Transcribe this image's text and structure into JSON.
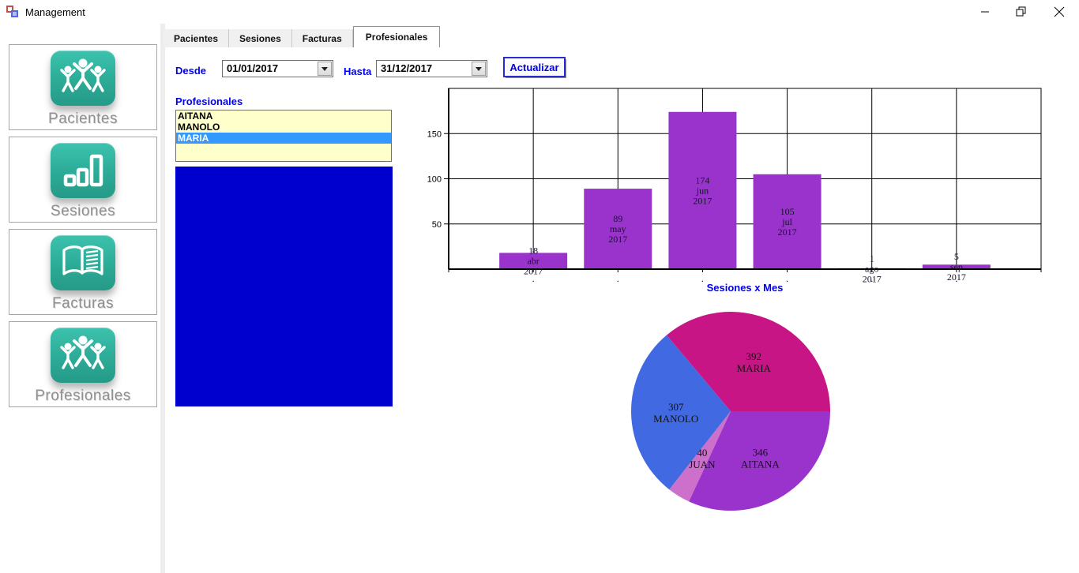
{
  "window": {
    "title": "Management"
  },
  "icons": {
    "app": "windows-form-icon",
    "minimize": "minimize-icon",
    "restore": "restore-icon",
    "close": "close-icon",
    "dropdown": "chevron-down-icon"
  },
  "sidebar": {
    "items": [
      {
        "label": "Pacientes",
        "icon": "people-icon"
      },
      {
        "label": "Sesiones",
        "icon": "bar-chart-icon"
      },
      {
        "label": "Facturas",
        "icon": "invoice-book-icon"
      },
      {
        "label": "Profesionales",
        "icon": "people-icon"
      }
    ]
  },
  "tabs": [
    {
      "label": "Pacientes",
      "selected": false
    },
    {
      "label": "Sesiones",
      "selected": false
    },
    {
      "label": "Facturas",
      "selected": false
    },
    {
      "label": "Profesionales",
      "selected": true
    }
  ],
  "filters": {
    "desde_label": "Desde",
    "desde_value": "01/01/2017",
    "hasta_label": "Hasta",
    "hasta_value": "31/12/2017",
    "actualizar_label": "Actualizar"
  },
  "professionals": {
    "label": "Profesionales",
    "items": [
      "AITANA",
      "MANOLO",
      "MARIA"
    ],
    "selected_index": 2
  },
  "colors": {
    "accent_blue": "#0000f0",
    "empty_chart_panel": "#0000ce",
    "list_background": "#ffffcc",
    "list_selection": "#3399ff",
    "nav_icon_teal": "#2cab97",
    "bar_purple": "#9933cc"
  },
  "chart_data": [
    {
      "type": "bar",
      "title": "Sesiones x Mes",
      "categories": [
        "abr",
        "may",
        "jun",
        "jul",
        "ago",
        "sep"
      ],
      "year": "2017",
      "values": [
        18,
        89,
        174,
        105,
        1,
        5
      ],
      "xlabel": "",
      "ylabel": "",
      "ylim": [
        0,
        200
      ],
      "yticks": [
        50,
        100,
        150
      ],
      "grid": true,
      "bar_color": "#9933cc",
      "legend": "none"
    },
    {
      "type": "pie",
      "title": "",
      "start_angle_deg": 0,
      "direction": "clockwise",
      "series": [
        {
          "name": "AITANA",
          "value": 346,
          "color": "#9933cc"
        },
        {
          "name": "JUAN",
          "value": 40,
          "color": "#cc70cc"
        },
        {
          "name": "MANOLO",
          "value": 307,
          "color": "#4169e1"
        },
        {
          "name": "MARIA",
          "value": 392,
          "color": "#c71585"
        }
      ]
    }
  ]
}
